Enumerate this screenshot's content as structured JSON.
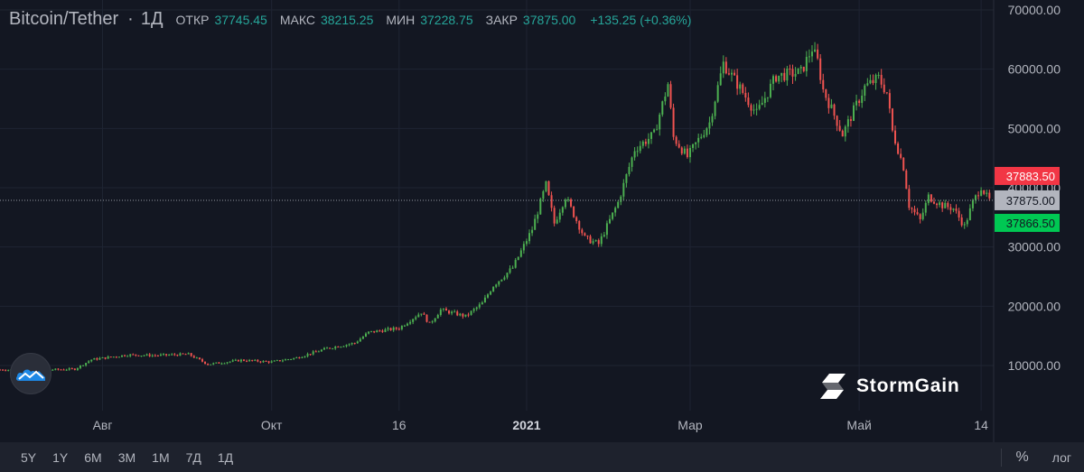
{
  "legend": {
    "symbol": "Bitcoin/Tether",
    "separator": "·",
    "interval": "1Д",
    "open_label": "ОТКР",
    "open_value": "37745.45",
    "high_label": "МАКС",
    "high_value": "38215.25",
    "low_label": "МИН",
    "low_value": "37228.75",
    "close_label": "ЗАКР",
    "close_value": "37875.00",
    "change": "+135.25 (+0.36%)"
  },
  "price_tags": {
    "ask": "37883.50",
    "last": "37875.00",
    "bid": "37866.50"
  },
  "toolbar": {
    "timeframes": [
      "5Y",
      "1Y",
      "6M",
      "3M",
      "1M",
      "7Д",
      "1Д"
    ],
    "percent_label": "%",
    "log_label": "лог"
  },
  "brand": "StormGain",
  "colors": {
    "background": "#131722",
    "up": "#26a69a",
    "down": "#ef5350",
    "up_candle": "#4caf50"
  },
  "chart_data": {
    "type": "candlestick",
    "title": "Bitcoin/Tether",
    "xlabel": "",
    "ylabel": "",
    "ylim": [
      5000,
      72000
    ],
    "yticks": [
      10000,
      20000,
      30000,
      40000,
      50000,
      60000,
      70000
    ],
    "ytick_labels": [
      "10000.00",
      "20000.00",
      "30000.00",
      "40000.00",
      "50000.00",
      "60000.00",
      "70000.00"
    ],
    "x_range": [
      "2020-06-25",
      "2021-06-12"
    ],
    "xticks": [
      {
        "date": "2020-08-01",
        "label": "Авг"
      },
      {
        "date": "2020-10-01",
        "label": "Окт"
      },
      {
        "date": "2020-11-16",
        "label": "16"
      },
      {
        "date": "2021-01-01",
        "label": "2021",
        "bold": true
      },
      {
        "date": "2021-03-01",
        "label": "Мар"
      },
      {
        "date": "2021-05-01",
        "label": "Май"
      },
      {
        "date": "2021-06-14",
        "label": "14"
      }
    ],
    "grid": true,
    "current_price": 37875.0,
    "price_path": [
      [
        "2020-06-25",
        9300
      ],
      [
        "2020-07-10",
        9250
      ],
      [
        "2020-07-22",
        9400
      ],
      [
        "2020-07-28",
        11000
      ],
      [
        "2020-08-10",
        11800
      ],
      [
        "2020-08-20",
        11700
      ],
      [
        "2020-09-01",
        11900
      ],
      [
        "2020-09-08",
        10200
      ],
      [
        "2020-09-20",
        10900
      ],
      [
        "2020-10-01",
        10600
      ],
      [
        "2020-10-10",
        11300
      ],
      [
        "2020-10-21",
        12900
      ],
      [
        "2020-10-31",
        13800
      ],
      [
        "2020-11-05",
        15600
      ],
      [
        "2020-11-16",
        16300
      ],
      [
        "2020-11-24",
        19000
      ],
      [
        "2020-11-27",
        17000
      ],
      [
        "2020-12-01",
        19400
      ],
      [
        "2020-12-10",
        18300
      ],
      [
        "2020-12-16",
        20500
      ],
      [
        "2020-12-20",
        23500
      ],
      [
        "2020-12-27",
        26500
      ],
      [
        "2021-01-03",
        33000
      ],
      [
        "2021-01-08",
        40500
      ],
      [
        "2021-01-11",
        34000
      ],
      [
        "2021-01-15",
        38500
      ],
      [
        "2021-01-22",
        31500
      ],
      [
        "2021-01-27",
        30500
      ],
      [
        "2021-02-03",
        37500
      ],
      [
        "2021-02-09",
        46500
      ],
      [
        "2021-02-16",
        49000
      ],
      [
        "2021-02-21",
        57500
      ],
      [
        "2021-02-23",
        48500
      ],
      [
        "2021-02-28",
        45200
      ],
      [
        "2021-03-08",
        51000
      ],
      [
        "2021-03-13",
        61000
      ],
      [
        "2021-03-18",
        57500
      ],
      [
        "2021-03-25",
        52500
      ],
      [
        "2021-04-01",
        58800
      ],
      [
        "2021-04-10",
        59500
      ],
      [
        "2021-04-14",
        63500
      ],
      [
        "2021-04-16",
        61300
      ],
      [
        "2021-04-18",
        56500
      ],
      [
        "2021-04-25",
        49000
      ],
      [
        "2021-05-03",
        57000
      ],
      [
        "2021-05-08",
        58500
      ],
      [
        "2021-05-11",
        56000
      ],
      [
        "2021-05-13",
        49500
      ],
      [
        "2021-05-17",
        43500
      ],
      [
        "2021-05-19",
        37000
      ],
      [
        "2021-05-23",
        34500
      ],
      [
        "2021-05-26",
        38500
      ],
      [
        "2021-05-31",
        37000
      ],
      [
        "2021-06-04",
        36500
      ],
      [
        "2021-06-08",
        33500
      ],
      [
        "2021-06-11",
        37500
      ],
      [
        "2021-06-14",
        40200
      ],
      [
        "2021-06-16",
        38500
      ],
      [
        "2021-06-17",
        37875
      ]
    ]
  }
}
